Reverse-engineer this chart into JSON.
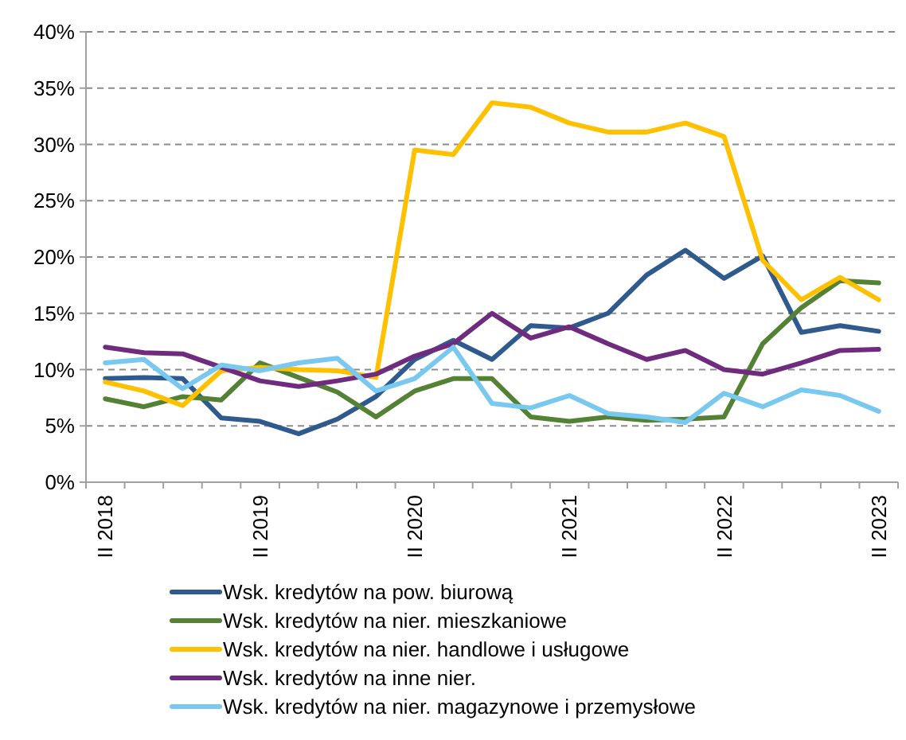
{
  "chart_data": {
    "type": "line",
    "categories": [
      "II 2018",
      null,
      null,
      null,
      "II 2019",
      null,
      null,
      null,
      "II 2020",
      null,
      null,
      null,
      "II 2021",
      null,
      null,
      null,
      "II 2022",
      null,
      null,
      null,
      "II 2023"
    ],
    "series": [
      {
        "name": "Wsk. kredytów na pow. biurową",
        "color": "#2e5a8e",
        "values": [
          9.2,
          9.3,
          9.2,
          5.7,
          5.4,
          4.3,
          5.6,
          7.6,
          10.9,
          12.6,
          10.9,
          13.9,
          13.7,
          15.0,
          18.4,
          20.6,
          18.1,
          20.1,
          13.3,
          13.9,
          13.4
        ]
      },
      {
        "name": "Wsk. kredytów na nier. mieszkaniowe",
        "color": "#548235",
        "values": [
          7.4,
          6.7,
          7.6,
          7.3,
          10.6,
          9.3,
          8.0,
          5.8,
          8.1,
          9.2,
          9.2,
          5.8,
          5.4,
          5.8,
          5.5,
          5.6,
          5.8,
          12.3,
          15.5,
          17.9,
          17.7
        ]
      },
      {
        "name": "Wsk. kredytów na nier. handlowe i usługowe",
        "color": "#ffc000",
        "values": [
          8.9,
          8.1,
          6.8,
          9.9,
          10.2,
          10.0,
          9.9,
          9.3,
          29.5,
          29.1,
          33.7,
          33.3,
          31.9,
          31.1,
          31.1,
          31.9,
          30.7,
          19.7,
          16.2,
          18.2,
          16.2
        ]
      },
      {
        "name": "Wsk. kredytów na inne nier.",
        "color": "#6f2c7e",
        "values": [
          12.0,
          11.5,
          11.4,
          10.2,
          9.0,
          8.5,
          9.0,
          9.6,
          11.2,
          12.3,
          15.0,
          12.8,
          13.8,
          12.3,
          10.9,
          11.7,
          10.0,
          9.6,
          10.6,
          11.7,
          11.8
        ]
      },
      {
        "name": "Wsk. kredytów na nier. magazynowe i przemysłowe",
        "color": "#78c8f0",
        "values": [
          10.6,
          10.9,
          8.3,
          10.4,
          9.9,
          10.6,
          11.0,
          8.1,
          9.2,
          12.0,
          7.0,
          6.6,
          7.7,
          6.1,
          5.8,
          5.3,
          7.9,
          6.7,
          8.2,
          7.7,
          6.3
        ]
      }
    ],
    "ylim": [
      0,
      40
    ],
    "yticks": [
      {
        "value": 0,
        "label": "0%"
      },
      {
        "value": 5,
        "label": "5%"
      },
      {
        "value": 10,
        "label": "10%"
      },
      {
        "value": 15,
        "label": "15%"
      },
      {
        "value": 20,
        "label": "20%"
      },
      {
        "value": 25,
        "label": "25%"
      },
      {
        "value": 30,
        "label": "30%"
      },
      {
        "value": 35,
        "label": "35%"
      },
      {
        "value": 40,
        "label": "40%"
      }
    ],
    "grid": "y",
    "legend": "bottom",
    "marker": "none",
    "line_style": "solid"
  }
}
